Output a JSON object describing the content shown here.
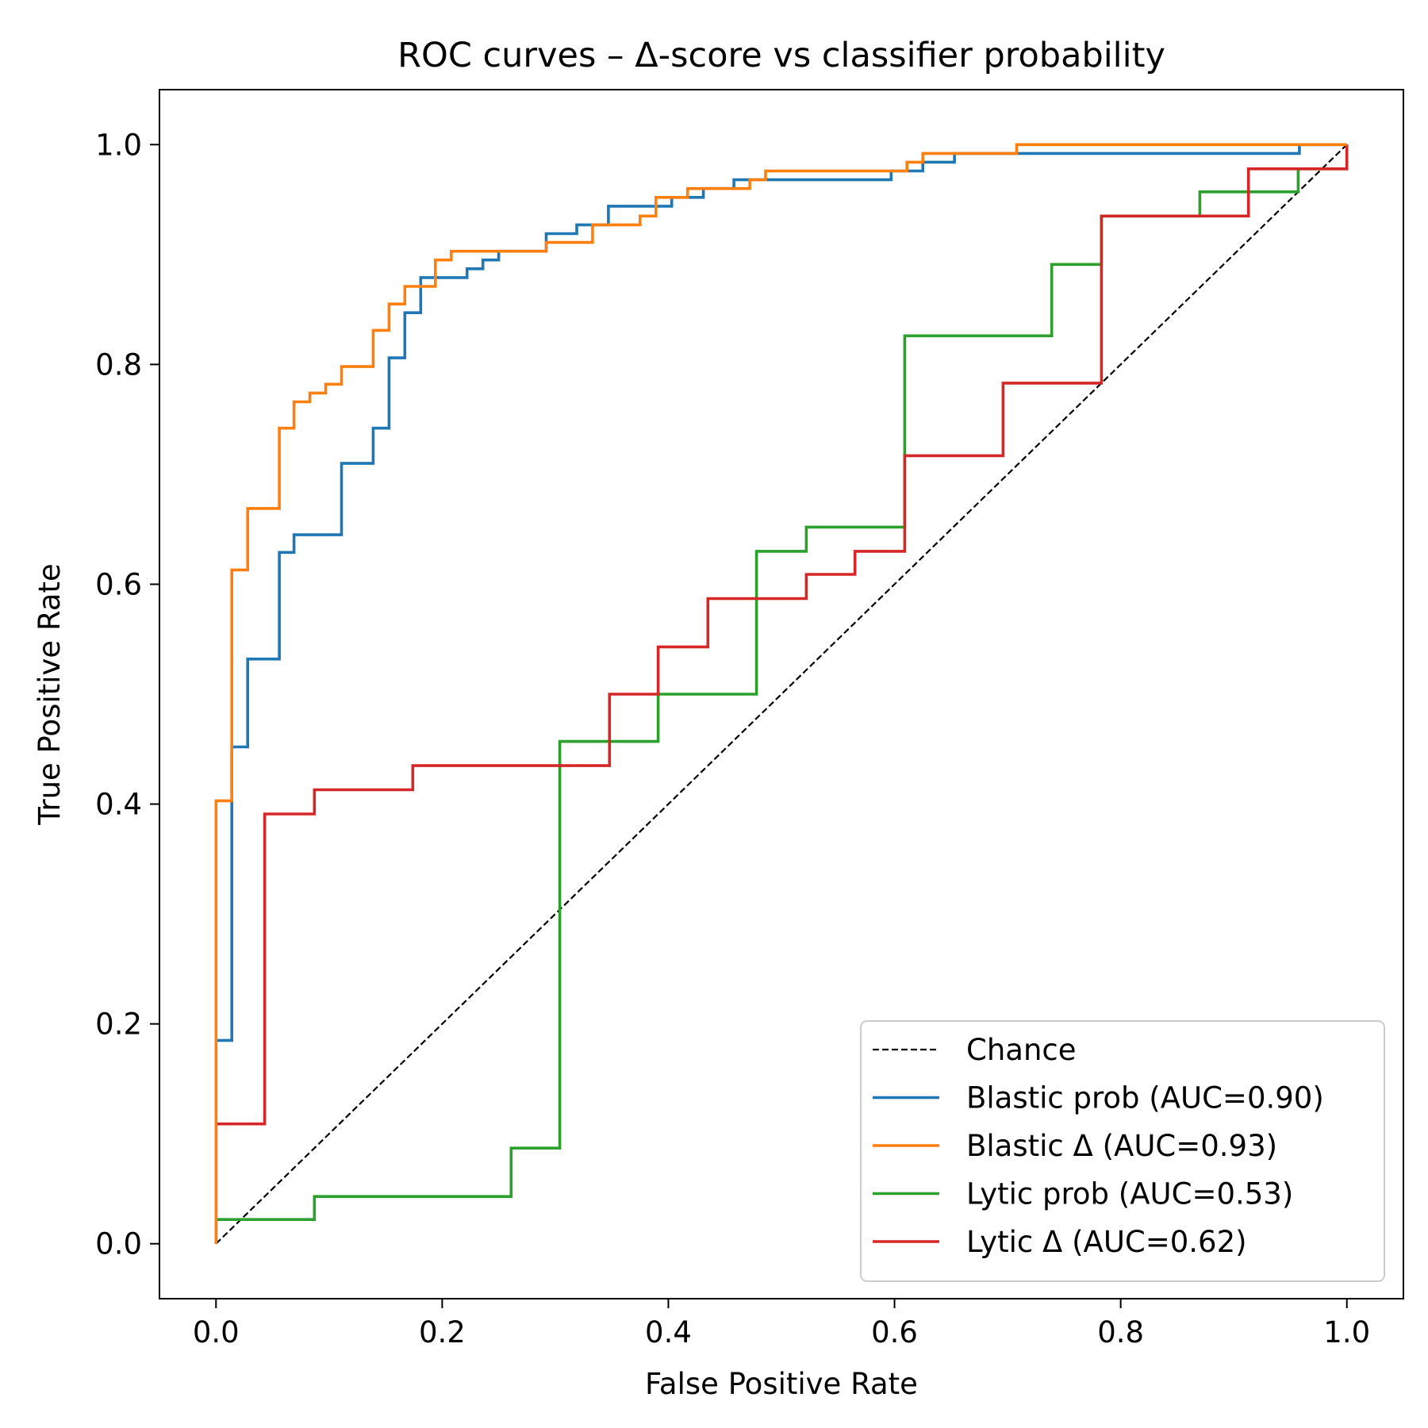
{
  "chart_data": {
    "type": "line",
    "title": "ROC curves – Δ-score vs classifier probability",
    "xlabel": "False Positive Rate",
    "ylabel": "True Positive Rate",
    "xlim": [
      -0.05,
      1.05
    ],
    "ylim": [
      -0.05,
      1.05
    ],
    "xticks": [
      0.0,
      0.2,
      0.4,
      0.6,
      0.8,
      1.0
    ],
    "yticks": [
      0.0,
      0.2,
      0.4,
      0.6,
      0.8,
      1.0
    ],
    "xtick_labels": [
      "0.0",
      "0.2",
      "0.4",
      "0.6",
      "0.8",
      "1.0"
    ],
    "ytick_labels": [
      "0.0",
      "0.2",
      "0.4",
      "0.6",
      "0.8",
      "1.0"
    ],
    "legend_position": "lower-right",
    "series": [
      {
        "name": "Chance",
        "color": "#000000",
        "style": "dashed",
        "x": [
          0.0,
          1.0
        ],
        "y": [
          0.0,
          1.0
        ]
      },
      {
        "name": "Blastic prob (AUC=0.90)",
        "color": "#1f77b4",
        "style": "solid",
        "x": [
          0.0,
          0.0,
          0.014,
          0.014,
          0.028,
          0.028,
          0.056,
          0.056,
          0.069,
          0.069,
          0.111,
          0.111,
          0.139,
          0.139,
          0.153,
          0.153,
          0.167,
          0.167,
          0.181,
          0.181,
          0.222,
          0.222,
          0.236,
          0.236,
          0.25,
          0.25,
          0.292,
          0.292,
          0.319,
          0.319,
          0.347,
          0.347,
          0.403,
          0.403,
          0.431,
          0.431,
          0.458,
          0.458,
          0.486,
          0.486,
          0.597,
          0.597,
          0.625,
          0.625,
          0.653,
          0.653,
          0.708,
          0.708,
          0.958,
          0.958,
          1.0
        ],
        "y": [
          0.0,
          0.185,
          0.185,
          0.452,
          0.452,
          0.532,
          0.532,
          0.629,
          0.629,
          0.645,
          0.645,
          0.71,
          0.71,
          0.742,
          0.742,
          0.806,
          0.806,
          0.847,
          0.847,
          0.879,
          0.879,
          0.887,
          0.887,
          0.895,
          0.895,
          0.903,
          0.903,
          0.919,
          0.919,
          0.927,
          0.927,
          0.944,
          0.944,
          0.952,
          0.952,
          0.96,
          0.96,
          0.968,
          0.968,
          0.968,
          0.968,
          0.976,
          0.976,
          0.984,
          0.984,
          0.992,
          0.992,
          0.992,
          0.992,
          1.0,
          1.0
        ]
      },
      {
        "name": "Blastic Δ (AUC=0.93)",
        "color": "#ff7f0e",
        "style": "solid",
        "x": [
          0.0,
          0.0,
          0.0,
          0.014,
          0.014,
          0.028,
          0.028,
          0.056,
          0.056,
          0.069,
          0.069,
          0.083,
          0.083,
          0.097,
          0.097,
          0.111,
          0.111,
          0.139,
          0.139,
          0.153,
          0.153,
          0.167,
          0.167,
          0.194,
          0.194,
          0.208,
          0.208,
          0.292,
          0.292,
          0.333,
          0.333,
          0.375,
          0.375,
          0.389,
          0.389,
          0.417,
          0.417,
          0.472,
          0.472,
          0.486,
          0.486,
          0.611,
          0.611,
          0.625,
          0.625,
          0.708,
          0.708,
          1.0
        ],
        "y": [
          0.0,
          0.105,
          0.403,
          0.403,
          0.613,
          0.613,
          0.669,
          0.669,
          0.742,
          0.742,
          0.766,
          0.766,
          0.774,
          0.774,
          0.782,
          0.782,
          0.798,
          0.798,
          0.831,
          0.831,
          0.855,
          0.855,
          0.871,
          0.871,
          0.895,
          0.895,
          0.903,
          0.903,
          0.911,
          0.911,
          0.927,
          0.927,
          0.935,
          0.935,
          0.952,
          0.952,
          0.96,
          0.96,
          0.968,
          0.968,
          0.976,
          0.976,
          0.984,
          0.984,
          0.992,
          0.992,
          1.0,
          1.0
        ]
      },
      {
        "name": "Lytic prob (AUC=0.53)",
        "color": "#2ca02c",
        "style": "solid",
        "x": [
          0.0,
          0.0,
          0.087,
          0.087,
          0.261,
          0.261,
          0.304,
          0.304,
          0.391,
          0.391,
          0.478,
          0.478,
          0.522,
          0.522,
          0.609,
          0.609,
          0.739,
          0.739,
          0.783,
          0.783,
          0.87,
          0.87,
          0.957,
          0.957,
          1.0,
          1.0
        ],
        "y": [
          0.0,
          0.022,
          0.022,
          0.043,
          0.043,
          0.087,
          0.087,
          0.457,
          0.457,
          0.5,
          0.5,
          0.63,
          0.63,
          0.652,
          0.652,
          0.826,
          0.826,
          0.891,
          0.891,
          0.935,
          0.935,
          0.957,
          0.957,
          0.978,
          0.978,
          1.0
        ]
      },
      {
        "name": "Lytic Δ (AUC=0.62)",
        "color": "#d62728",
        "style": "solid",
        "x": [
          0.0,
          0.0,
          0.043,
          0.043,
          0.087,
          0.087,
          0.174,
          0.174,
          0.348,
          0.348,
          0.391,
          0.391,
          0.435,
          0.435,
          0.522,
          0.522,
          0.565,
          0.565,
          0.609,
          0.609,
          0.696,
          0.696,
          0.783,
          0.783,
          0.913,
          0.913,
          1.0,
          1.0
        ],
        "y": [
          0.0,
          0.109,
          0.109,
          0.391,
          0.391,
          0.413,
          0.413,
          0.435,
          0.435,
          0.5,
          0.5,
          0.543,
          0.543,
          0.587,
          0.587,
          0.609,
          0.609,
          0.63,
          0.63,
          0.717,
          0.717,
          0.783,
          0.783,
          0.935,
          0.935,
          0.978,
          0.978,
          1.0
        ]
      }
    ]
  }
}
